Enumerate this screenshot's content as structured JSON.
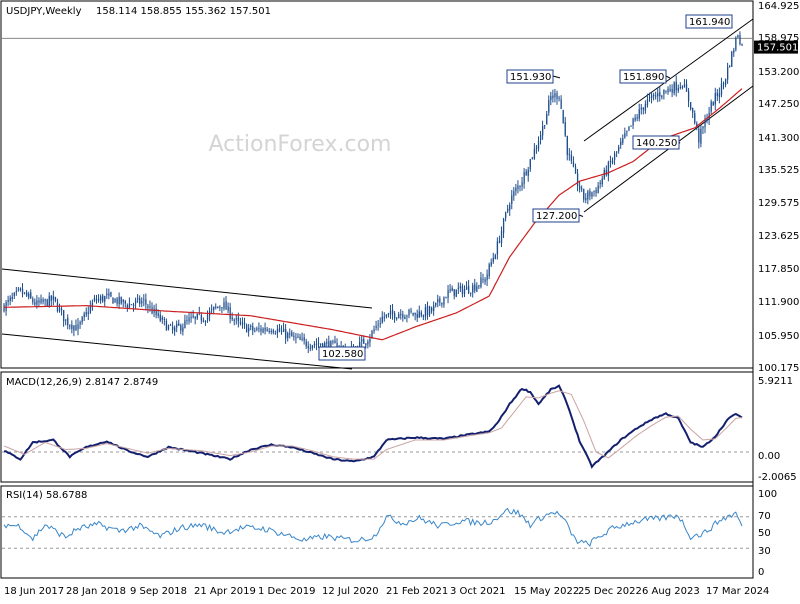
{
  "main": {
    "header": {
      "symbol_tf": "USDJPY,Weekly",
      "ohlc": "158.114 158.855 155.362 157.501"
    },
    "watermark": "ActionForex.com",
    "last_price": "157.501",
    "y_ticks": [
      "164.925",
      "158.975",
      "153.200",
      "147.250",
      "141.300",
      "135.525",
      "129.575",
      "123.625",
      "117.850",
      "111.900",
      "105.950",
      "100.175"
    ],
    "annotations": [
      {
        "label": "161.940",
        "value": 161.94,
        "week": 356
      },
      {
        "label": "151.930",
        "value": 151.93,
        "week": 270
      },
      {
        "label": "151.890",
        "value": 151.89,
        "week": 330
      },
      {
        "label": "140.250",
        "value": 140.25,
        "week": 338
      },
      {
        "label": "127.200",
        "value": 127.2,
        "week": 279
      },
      {
        "label": "102.580",
        "value": 102.58,
        "week": 170
      }
    ]
  },
  "macd": {
    "label": "MACD(12,26,9) 2.8147 2.8749",
    "y_ticks": [
      "5.9211",
      "0.00",
      "-2.0065"
    ]
  },
  "rsi": {
    "label": "RSI(14) 58.6788",
    "y_ticks": [
      "100",
      "70",
      "50",
      "30",
      "0"
    ]
  },
  "x_ticks": [
    "18 Jun 2017",
    "28 Jan 2018",
    "9 Sep 2018",
    "21 Apr 2019",
    "1 Dec 2019",
    "12 Jul 2020",
    "21 Feb 2021",
    "3 Oct 2021",
    "15 May 2022",
    "25 Dec 2022",
    "6 Aug 2023",
    "17 Mar 2024"
  ],
  "colors": {
    "candle": "#1f4e8c",
    "ma": "#cc1f1f",
    "macd": "#14206e",
    "signal": "#c9a3a3",
    "rsi": "#3a86c8",
    "grid": "#9a9a9a"
  },
  "chart_data": [
    {
      "type": "candlestick",
      "title": "USDJPY,Weekly",
      "ylim": [
        100.175,
        164.925
      ],
      "x_tick_labels": [
        "18 Jun 2017",
        "28 Jan 2018",
        "9 Sep 2018",
        "21 Apr 2019",
        "1 Dec 2019",
        "12 Jul 2020",
        "21 Feb 2021",
        "3 Oct 2021",
        "15 May 2022",
        "25 Dec 2022",
        "6 Aug 2023",
        "17 Mar 2024"
      ],
      "series_close_key": [
        [
          0,
          111.2
        ],
        [
          8,
          113.8
        ],
        [
          16,
          111.5
        ],
        [
          24,
          112.3
        ],
        [
          30,
          108.6
        ],
        [
          36,
          107.3
        ],
        [
          44,
          112.2
        ],
        [
          50,
          112.8
        ],
        [
          60,
          111.5
        ],
        [
          68,
          112.0
        ],
        [
          76,
          108.8
        ],
        [
          82,
          106.7
        ],
        [
          90,
          108.6
        ],
        [
          98,
          109.4
        ],
        [
          106,
          111.7
        ],
        [
          114,
          107.9
        ],
        [
          122,
          106.8
        ],
        [
          130,
          107.4
        ],
        [
          138,
          106.0
        ],
        [
          146,
          104.6
        ],
        [
          154,
          104.5
        ],
        [
          162,
          103.9
        ],
        [
          170,
          103.2
        ],
        [
          178,
          105.9
        ],
        [
          184,
          109.2
        ],
        [
          192,
          110.0
        ],
        [
          200,
          109.8
        ],
        [
          208,
          110.4
        ],
        [
          216,
          113.6
        ],
        [
          222,
          114.0
        ],
        [
          228,
          114.6
        ],
        [
          234,
          116.0
        ],
        [
          240,
          122.0
        ],
        [
          246,
          130.0
        ],
        [
          252,
          133.8
        ],
        [
          258,
          139.0
        ],
        [
          262,
          143.0
        ],
        [
          266,
          148.5
        ],
        [
          270,
          149.0
        ],
        [
          274,
          139.0
        ],
        [
          278,
          134.0
        ],
        [
          282,
          130.5
        ],
        [
          288,
          132.0
        ],
        [
          294,
          136.0
        ],
        [
          300,
          140.0
        ],
        [
          306,
          144.0
        ],
        [
          312,
          147.5
        ],
        [
          318,
          149.0
        ],
        [
          324,
          150.0
        ],
        [
          330,
          151.0
        ],
        [
          334,
          147.0
        ],
        [
          338,
          141.0
        ],
        [
          344,
          147.0
        ],
        [
          350,
          151.0
        ],
        [
          354,
          156.0
        ],
        [
          357,
          160.0
        ],
        [
          359,
          157.5
        ]
      ],
      "moving_average_key": [
        [
          0,
          111.0
        ],
        [
          40,
          111.3
        ],
        [
          80,
          110.3
        ],
        [
          120,
          109.5
        ],
        [
          160,
          107.0
        ],
        [
          184,
          105.2
        ],
        [
          200,
          107.5
        ],
        [
          220,
          110.0
        ],
        [
          236,
          113.0
        ],
        [
          246,
          120.0
        ],
        [
          258,
          126.0
        ],
        [
          270,
          131.0
        ],
        [
          280,
          133.5
        ],
        [
          294,
          135.0
        ],
        [
          306,
          137.0
        ],
        [
          320,
          141.0
        ],
        [
          336,
          143.0
        ],
        [
          348,
          146.5
        ],
        [
          359,
          150.0
        ]
      ],
      "annotations": [
        {
          "text": "161.940",
          "value": 161.94
        },
        {
          "text": "151.930",
          "value": 151.93
        },
        {
          "text": "151.890",
          "value": 151.89
        },
        {
          "text": "140.250",
          "value": 140.25
        },
        {
          "text": "127.200",
          "value": 127.2
        },
        {
          "text": "102.580",
          "value": 102.58
        }
      ],
      "last_price": 157.501
    },
    {
      "type": "line",
      "title": "MACD(12,26,9)",
      "ylim": [
        -2.0065,
        5.9211
      ],
      "series": [
        {
          "name": "MACD",
          "key": [
            [
              0,
              0.1
            ],
            [
              8,
              -0.6
            ],
            [
              14,
              0.8
            ],
            [
              24,
              1.0
            ],
            [
              32,
              -0.4
            ],
            [
              40,
              0.4
            ],
            [
              50,
              0.9
            ],
            [
              60,
              0.1
            ],
            [
              70,
              -0.4
            ],
            [
              80,
              0.4
            ],
            [
              96,
              -0.1
            ],
            [
              110,
              -0.6
            ],
            [
              120,
              0.2
            ],
            [
              130,
              0.6
            ],
            [
              140,
              0.4
            ],
            [
              150,
              -0.1
            ],
            [
              160,
              -0.6
            ],
            [
              170,
              -0.8
            ],
            [
              180,
              -0.4
            ],
            [
              186,
              1.0
            ],
            [
              200,
              1.2
            ],
            [
              214,
              1.1
            ],
            [
              228,
              1.5
            ],
            [
              236,
              1.7
            ],
            [
              240,
              2.4
            ],
            [
              246,
              4.0
            ],
            [
              252,
              5.3
            ],
            [
              256,
              5.0
            ],
            [
              260,
              4.0
            ],
            [
              266,
              5.2
            ],
            [
              270,
              5.5
            ],
            [
              274,
              4.0
            ],
            [
              280,
              0.9
            ],
            [
              286,
              -1.2
            ],
            [
              292,
              -0.3
            ],
            [
              300,
              1.0
            ],
            [
              308,
              2.0
            ],
            [
              316,
              2.8
            ],
            [
              322,
              3.2
            ],
            [
              328,
              2.8
            ],
            [
              334,
              0.8
            ],
            [
              340,
              0.4
            ],
            [
              346,
              1.3
            ],
            [
              352,
              2.7
            ],
            [
              356,
              3.2
            ],
            [
              359,
              2.81
            ]
          ]
        },
        {
          "name": "Signal",
          "key": [
            [
              0,
              0.5
            ],
            [
              10,
              -0.2
            ],
            [
              20,
              0.8
            ],
            [
              30,
              0.2
            ],
            [
              40,
              0.3
            ],
            [
              50,
              0.7
            ],
            [
              60,
              0.3
            ],
            [
              70,
              -0.1
            ],
            [
              80,
              0.3
            ],
            [
              96,
              0.1
            ],
            [
              110,
              -0.3
            ],
            [
              120,
              0.0
            ],
            [
              130,
              0.5
            ],
            [
              140,
              0.5
            ],
            [
              150,
              0.1
            ],
            [
              160,
              -0.4
            ],
            [
              170,
              -0.6
            ],
            [
              180,
              -0.6
            ],
            [
              186,
              0.2
            ],
            [
              200,
              1.0
            ],
            [
              214,
              1.0
            ],
            [
              228,
              1.4
            ],
            [
              236,
              1.6
            ],
            [
              242,
              2.0
            ],
            [
              248,
              3.3
            ],
            [
              254,
              4.6
            ],
            [
              260,
              4.5
            ],
            [
              266,
              4.9
            ],
            [
              270,
              5.1
            ],
            [
              276,
              4.8
            ],
            [
              282,
              2.6
            ],
            [
              288,
              0.0
            ],
            [
              294,
              -0.5
            ],
            [
              300,
              0.3
            ],
            [
              308,
              1.4
            ],
            [
              316,
              2.3
            ],
            [
              322,
              2.9
            ],
            [
              328,
              3.0
            ],
            [
              334,
              1.9
            ],
            [
              340,
              1.0
            ],
            [
              346,
              1.1
            ],
            [
              352,
              2.1
            ],
            [
              356,
              2.8
            ],
            [
              359,
              2.87
            ]
          ]
        }
      ]
    },
    {
      "type": "line",
      "title": "RSI(14)",
      "ylim": [
        0,
        100
      ],
      "series": [
        {
          "name": "RSI",
          "key": [
            [
              0,
              60
            ],
            [
              8,
              58
            ],
            [
              14,
              42
            ],
            [
              20,
              60
            ],
            [
              30,
              44
            ],
            [
              36,
              55
            ],
            [
              46,
              60
            ],
            [
              56,
              52
            ],
            [
              66,
              58
            ],
            [
              76,
              45
            ],
            [
              86,
              56
            ],
            [
              96,
              60
            ],
            [
              106,
              50
            ],
            [
              116,
              56
            ],
            [
              126,
              55
            ],
            [
              136,
              48
            ],
            [
              146,
              40
            ],
            [
              156,
              45
            ],
            [
              164,
              42
            ],
            [
              172,
              40
            ],
            [
              180,
              45
            ],
            [
              186,
              70
            ],
            [
              194,
              62
            ],
            [
              202,
              68
            ],
            [
              212,
              58
            ],
            [
              222,
              65
            ],
            [
              232,
              62
            ],
            [
              238,
              65
            ],
            [
              244,
              78
            ],
            [
              250,
              75
            ],
            [
              256,
              60
            ],
            [
              262,
              70
            ],
            [
              268,
              76
            ],
            [
              272,
              68
            ],
            [
              278,
              40
            ],
            [
              284,
              35
            ],
            [
              290,
              45
            ],
            [
              296,
              55
            ],
            [
              304,
              62
            ],
            [
              312,
              66
            ],
            [
              320,
              68
            ],
            [
              328,
              72
            ],
            [
              334,
              45
            ],
            [
              340,
              48
            ],
            [
              348,
              65
            ],
            [
              352,
              70
            ],
            [
              356,
              74
            ],
            [
              359,
              58.68
            ]
          ]
        }
      ]
    }
  ]
}
